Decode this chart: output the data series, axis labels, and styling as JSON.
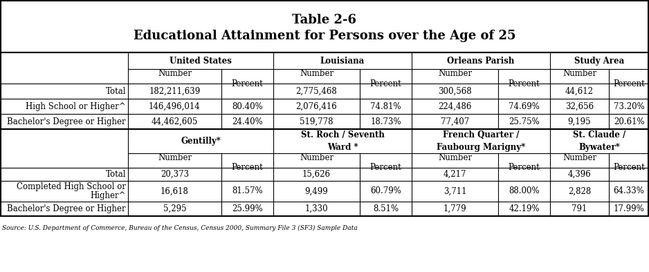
{
  "title_line1": "Table 2-6",
  "title_line2": "Educational Attainment for Persons over the Age of 25",
  "section1": {
    "group_headers": [
      "United States",
      "Louisiana",
      "Orleans Parish",
      "Study Area"
    ],
    "rows": [
      [
        "Total",
        "182,211,639",
        "",
        "2,775,468",
        "",
        "300,568",
        "",
        "44,612",
        ""
      ],
      [
        "High School or Higher^",
        "146,496,014",
        "80.40%",
        "2,076,416",
        "74.81%",
        "224,486",
        "74.69%",
        "32,656",
        "73.20%"
      ],
      [
        "Bachelor's Degree or Higher",
        "44,462,605",
        "24.40%",
        "519,778",
        "18.73%",
        "77,407",
        "25.75%",
        "9,195",
        "20.61%"
      ]
    ]
  },
  "section2": {
    "group_headers": [
      "Gentilly*",
      "St. Roch / Seventh\nWard *",
      "French Quarter /\nFaubourg Marigny*",
      "St. Claude /\nBywater*"
    ],
    "rows": [
      [
        "Total",
        "20,373",
        "",
        "15,626",
        "",
        "4,217",
        "",
        "4,396",
        ""
      ],
      [
        "Completed High School or\nHigher^",
        "16,618",
        "81.57%",
        "9,499",
        "60.79%",
        "3,711",
        "88.00%",
        "2,828",
        "64.33%"
      ],
      [
        "Bachelor's Degree or Higher",
        "5,295",
        "25.99%",
        "1,330",
        "8.51%",
        "1,779",
        "42.19%",
        "791",
        "17.99%"
      ]
    ]
  },
  "footnote": "Source: U.S. Department of Commerce, Bureau of the Census, Census 2000, Summary File 3 (SF3) Sample Data",
  "col_edges": [
    0,
    185,
    320,
    395,
    520,
    595,
    720,
    795,
    880,
    938
  ],
  "title_fontsize": 13,
  "body_fontsize": 8.5
}
